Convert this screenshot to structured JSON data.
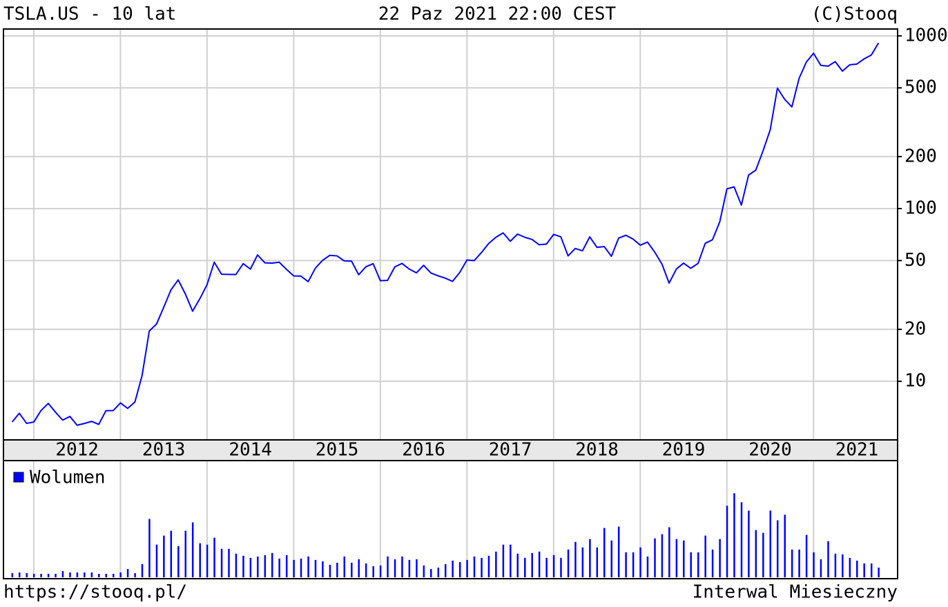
{
  "chart_data": [
    {
      "type": "line",
      "title": "TSLA.US - 10 lat",
      "subtitle": "22 Paz 2021 22:00 CEST",
      "source": "(C)Stooq",
      "url": "https://stooq.pl/",
      "interval": "Interwal Miesieczny",
      "log_scale": true,
      "grid": true,
      "xlim": [
        2011.65,
        2021.97
      ],
      "xgrid": [
        2012,
        2013,
        2014,
        2015,
        2016,
        2017,
        2018,
        2019,
        2020,
        2021
      ],
      "xticks": [
        {
          "value": 2012.5,
          "label": "2012"
        },
        {
          "value": 2013.5,
          "label": "2013"
        },
        {
          "value": 2014.5,
          "label": "2014"
        },
        {
          "value": 2015.5,
          "label": "2015"
        },
        {
          "value": 2016.5,
          "label": "2016"
        },
        {
          "value": 2017.5,
          "label": "2017"
        },
        {
          "value": 2018.5,
          "label": "2018"
        },
        {
          "value": 2019.5,
          "label": "2019"
        },
        {
          "value": 2020.5,
          "label": "2020"
        },
        {
          "value": 2021.5,
          "label": "2021"
        }
      ],
      "ylim": [
        4.58,
        1096
      ],
      "yticks": [
        10,
        20,
        50,
        100,
        200,
        500,
        1000
      ],
      "x": [
        2011.75,
        2011.833,
        2011.917,
        2012,
        2012.083,
        2012.167,
        2012.25,
        2012.333,
        2012.417,
        2012.5,
        2012.583,
        2012.667,
        2012.75,
        2012.833,
        2012.917,
        2013,
        2013.083,
        2013.167,
        2013.25,
        2013.333,
        2013.417,
        2013.5,
        2013.583,
        2013.667,
        2013.75,
        2013.833,
        2013.917,
        2014,
        2014.083,
        2014.167,
        2014.25,
        2014.333,
        2014.417,
        2014.5,
        2014.583,
        2014.667,
        2014.75,
        2014.833,
        2014.917,
        2015,
        2015.083,
        2015.167,
        2015.25,
        2015.333,
        2015.417,
        2015.5,
        2015.583,
        2015.667,
        2015.75,
        2015.833,
        2015.917,
        2016,
        2016.083,
        2016.167,
        2016.25,
        2016.333,
        2016.417,
        2016.5,
        2016.583,
        2016.667,
        2016.75,
        2016.833,
        2016.917,
        2017,
        2017.083,
        2017.167,
        2017.25,
        2017.333,
        2017.417,
        2017.5,
        2017.583,
        2017.667,
        2017.75,
        2017.833,
        2017.917,
        2018,
        2018.083,
        2018.167,
        2018.25,
        2018.333,
        2018.417,
        2018.5,
        2018.583,
        2018.667,
        2018.75,
        2018.833,
        2018.917,
        2019,
        2019.083,
        2019.167,
        2019.25,
        2019.333,
        2019.417,
        2019.5,
        2019.583,
        2019.667,
        2019.75,
        2019.833,
        2019.917,
        2020,
        2020.083,
        2020.167,
        2020.25,
        2020.333,
        2020.417,
        2020.5,
        2020.583,
        2020.667,
        2020.75,
        2020.833,
        2020.917,
        2021,
        2021.083,
        2021.167,
        2021.25,
        2021.333,
        2021.417,
        2021.5,
        2021.583,
        2021.667,
        2021.75
      ],
      "series": [
        {
          "color": "#0000ff",
          "values": [
            5.82,
            6.53,
            5.71,
            5.81,
            6.77,
            7.45,
            6.63,
            5.96,
            6.26,
            5.57,
            5.7,
            5.86,
            5.63,
            6.76,
            6.77,
            7.5,
            6.97,
            7.58,
            10.79,
            19.55,
            21.47,
            26.86,
            33.8,
            38.67,
            31.99,
            25.46,
            30.09,
            36.28,
            48.96,
            41.69,
            41.58,
            41.55,
            48.01,
            44.66,
            53.94,
            48.54,
            48.34,
            48.9,
            44.48,
            40.72,
            40.67,
            37.75,
            45.21,
            50.16,
            53.65,
            53.23,
            49.81,
            49.68,
            41.39,
            46.05,
            48.0,
            38.24,
            38.39,
            45.95,
            48.15,
            44.65,
            42.46,
            46.96,
            42.4,
            40.81,
            39.55,
            37.88,
            42.74,
            50.39,
            50.0,
            55.66,
            62.81,
            68.2,
            72.32,
            64.69,
            71.18,
            68.22,
            66.31,
            61.77,
            62.27,
            70.86,
            68.61,
            53.23,
            58.78,
            56.95,
            68.59,
            59.63,
            60.33,
            52.95,
            67.46,
            70.1,
            66.56,
            61.4,
            63.98,
            55.97,
            47.74,
            37.03,
            44.69,
            48.32,
            45.12,
            48.17,
            62.98,
            65.99,
            83.67,
            130.11,
            133.6,
            104.8,
            156.38,
            167.0,
            215.96,
            286.15,
            498.32,
            429.01,
            388.04,
            567.6,
            705.67,
            793.53,
            675.5,
            667.93,
            709.44,
            625.22,
            679.7,
            687.2,
            735.72,
            775.48,
            909.68
          ]
        }
      ]
    },
    {
      "type": "bar",
      "ylim": [
        0,
        155
      ],
      "series": [
        {
          "name": "Wolumen",
          "color": "#0000ff",
          "values": [
            6,
            7,
            6,
            5,
            5,
            5,
            5,
            9,
            7,
            7,
            7,
            7,
            5,
            5,
            5,
            7,
            12,
            6,
            19,
            84,
            47,
            60,
            67,
            45,
            67,
            79,
            49,
            47,
            57,
            41,
            41,
            34,
            31,
            28,
            30,
            32,
            35,
            27,
            32,
            25,
            27,
            30,
            25,
            23,
            18,
            21,
            30,
            21,
            26,
            20,
            16,
            17,
            30,
            26,
            30,
            25,
            26,
            17,
            12,
            14,
            19,
            24,
            22,
            25,
            30,
            28,
            31,
            37,
            47,
            47,
            34,
            28,
            35,
            37,
            28,
            32,
            28,
            40,
            51,
            43,
            55,
            43,
            71,
            53,
            73,
            36,
            36,
            43,
            30,
            56,
            62,
            72,
            55,
            53,
            36,
            36,
            60,
            40,
            55,
            103,
            121,
            108,
            96,
            68,
            64,
            96,
            82,
            90,
            40,
            40,
            61,
            36,
            26,
            52,
            34,
            33,
            28,
            24,
            20,
            20,
            14
          ]
        }
      ]
    }
  ]
}
